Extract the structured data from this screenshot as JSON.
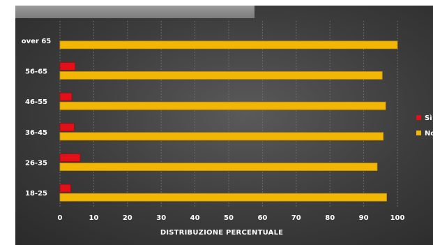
{
  "chart_data": {
    "type": "bar",
    "orientation": "horizontal",
    "categories": [
      "over 65",
      "56-65",
      "46-55",
      "36-45",
      "26-35",
      "18-25"
    ],
    "series": [
      {
        "name": "Sì",
        "color": "#e3101a",
        "values": [
          0,
          4.5,
          3.5,
          4.2,
          6,
          3.2
        ]
      },
      {
        "name": "No",
        "color": "#f2b705",
        "values": [
          100,
          95.5,
          96.5,
          95.8,
          94,
          96.8
        ]
      }
    ],
    "xlabel": "DISTRIBUZIONE PERCENTUALE",
    "xticks": [
      0,
      10,
      20,
      30,
      40,
      50,
      60,
      70,
      80,
      90,
      100
    ],
    "xlim": [
      0,
      100
    ],
    "grid": true,
    "legend": "right"
  }
}
